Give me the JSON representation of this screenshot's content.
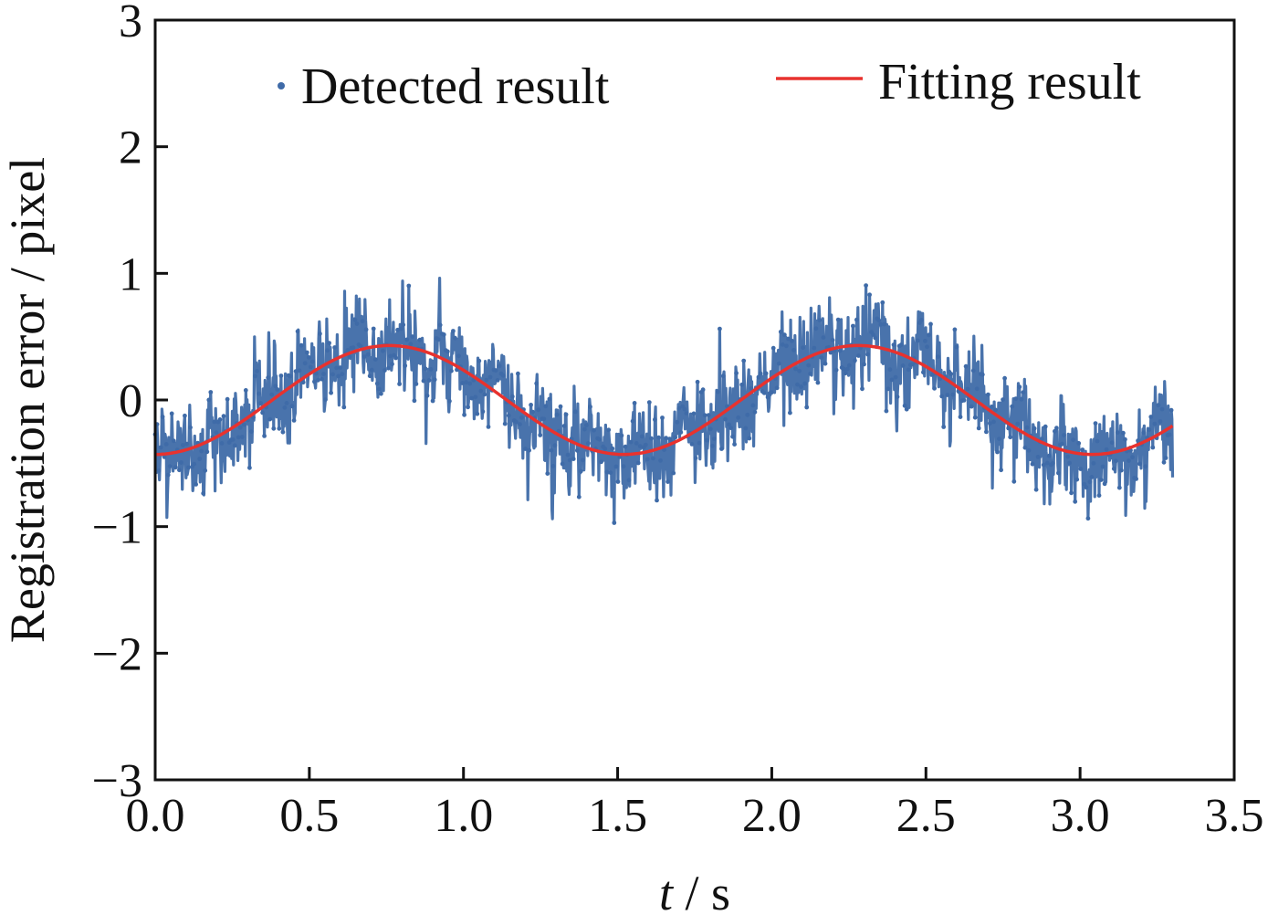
{
  "chart_data": {
    "type": "scatter",
    "title": "",
    "xlabel": {
      "italic": "t",
      "rest": " / s"
    },
    "ylabel": "Registration error / pixel",
    "xlim": [
      0.0,
      3.5
    ],
    "ylim": [
      -3,
      3
    ],
    "xticks": [
      "0.0",
      "0.5",
      "1.0",
      "1.5",
      "2.0",
      "2.5",
      "3.0",
      "3.5"
    ],
    "yticks": [
      "3",
      "2",
      "1",
      "0",
      "−1",
      "−2",
      "−3"
    ],
    "legend": {
      "placement": "top",
      "entries": [
        {
          "label": "Detected result",
          "marker": "dot",
          "color": "#3f6ba8"
        },
        {
          "label": "Fitting result",
          "marker": "line",
          "color": "#e8322e"
        }
      ]
    },
    "series": [
      {
        "name": "Fitting result",
        "kind": "line",
        "color": "#e8322e",
        "model": {
          "amplitude": 0.43,
          "period_s": 1.52,
          "phase_shift_s": 0.0,
          "offset": 0.0,
          "form": "-A*cos(2*pi*t/period)"
        },
        "x_range": [
          0.0,
          3.3
        ]
      },
      {
        "name": "Detected result",
        "kind": "scatter",
        "color": "#3f6ba8",
        "points_approx": 1650,
        "noise_std": 0.17,
        "x_range": [
          0.0,
          3.3
        ],
        "envelope": {
          "min": -0.97,
          "max": 1.05
        }
      }
    ]
  }
}
